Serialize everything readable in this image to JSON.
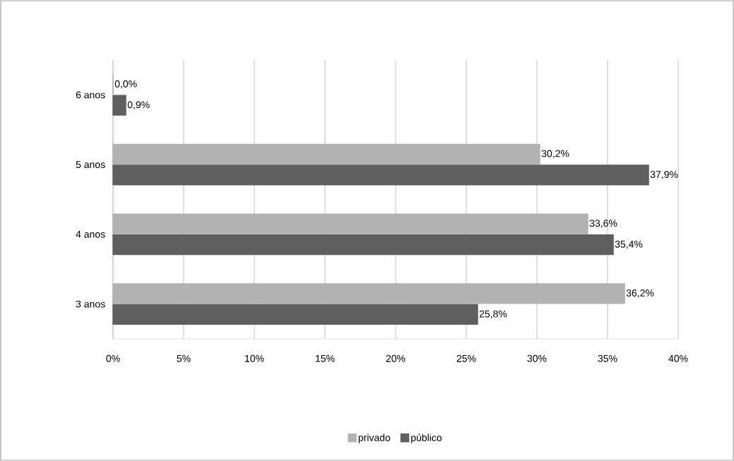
{
  "chart_data": {
    "type": "bar",
    "orientation": "horizontal",
    "categories": [
      "6 anos",
      "5 anos",
      "4 anos",
      "3 anos"
    ],
    "series": [
      {
        "name": "privado",
        "color": "#b2b2b2",
        "values": [
          0.0,
          30.2,
          33.6,
          36.2
        ],
        "value_labels": [
          "0,0%",
          "30,2%",
          "33,6%",
          "36,2%"
        ]
      },
      {
        "name": "público",
        "color": "#5f5f5f",
        "values": [
          0.9,
          37.9,
          35.4,
          25.8
        ],
        "value_labels": [
          "0,9%",
          "37,9%",
          "35,4%",
          "25,8%"
        ]
      }
    ],
    "xlim": [
      0,
      40
    ],
    "xticks": [
      {
        "value": 0,
        "label": "0%"
      },
      {
        "value": 5,
        "label": "5%"
      },
      {
        "value": 10,
        "label": "10%"
      },
      {
        "value": 15,
        "label": "15%"
      },
      {
        "value": 20,
        "label": "20%"
      },
      {
        "value": 25,
        "label": "25%"
      },
      {
        "value": 30,
        "label": "30%"
      },
      {
        "value": 35,
        "label": "35%"
      },
      {
        "value": 40,
        "label": "40%"
      }
    ],
    "grid": "x",
    "legend": "bottom"
  }
}
